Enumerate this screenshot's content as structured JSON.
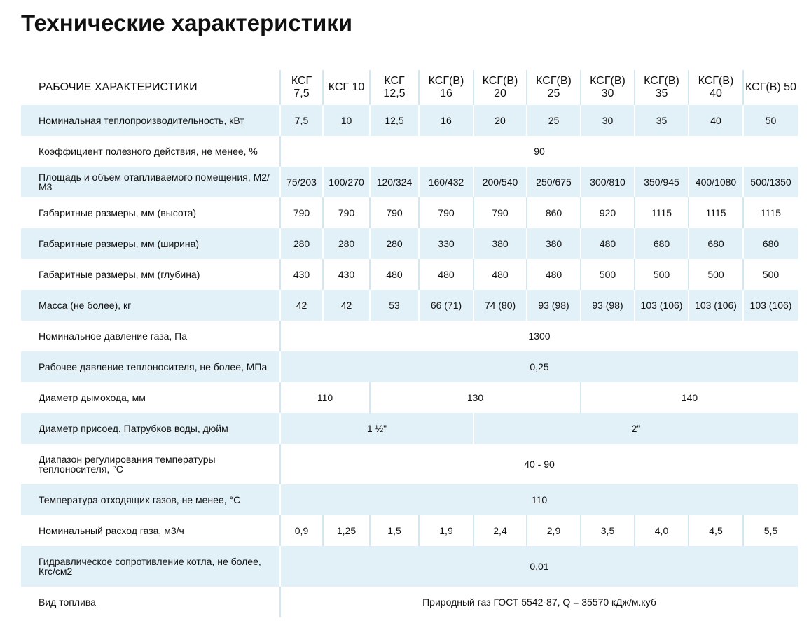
{
  "header": {
    "title": "Технические характеристики"
  },
  "table": {
    "header": [
      "РАБОЧИЕ ХАРАКТЕРИСТИКИ",
      "КСГ 7,5",
      "КСГ 10",
      "КСГ 12,5",
      "КСГ(В) 16",
      "КСГ(В) 20",
      "КСГ(В) 25",
      "КСГ(В) 30",
      "КСГ(В) 35",
      "КСГ(В) 40",
      "КСГ(В) 50"
    ],
    "rows": [
      [
        "Номинальная теплопроизводительность, кВт",
        "7,5",
        "10",
        "12,5",
        "16",
        "20",
        "25",
        "30",
        "35",
        "40",
        "50"
      ],
      [
        "Коэффициент полезного действия, не менее, %",
        "90"
      ],
      [
        "Площадь и объем отапливаемого помещения, М2/М3",
        "75/203",
        "100/270",
        "120/324",
        "160/432",
        "200/540",
        "250/675",
        "300/810",
        "350/945",
        "400/1080",
        "500/1350"
      ],
      [
        "Габаритные размеры, мм (высота)",
        "790",
        "790",
        "790",
        "790",
        "790",
        "860",
        "920",
        "1115",
        "1115",
        "1115"
      ],
      [
        "Габаритные размеры, мм (ширина)",
        "280",
        "280",
        "280",
        "330",
        "380",
        "380",
        "480",
        "680",
        "680",
        "680"
      ],
      [
        "Габаритные размеры, мм (глубина)",
        "430",
        "430",
        "480",
        "480",
        "480",
        "480",
        "500",
        "500",
        "500",
        "500"
      ],
      [
        "Масса (не более), кг",
        "42",
        "42",
        "53",
        "66 (71)",
        "74 (80)",
        "93 (98)",
        "93 (98)",
        "103 (106)",
        "103 (106)",
        "103 (106)"
      ],
      [
        "Номинальное давление газа, Па",
        "1300"
      ],
      [
        "Рабочее давление теплоносителя, не более, МПа",
        "0,25"
      ],
      [
        "Диаметр дымохода, мм",
        "110",
        "130",
        "140"
      ],
      [
        "Диаметр присоед. Патрубков воды, дюйм",
        "1 ½\"",
        "2\""
      ],
      [
        "Диапазон регулирования температуры теплоносителя, °С",
        "40 - 90"
      ],
      [
        "Температура отходящих газов, не менее, °С",
        "110"
      ],
      [
        "Номинальный расход газа, м3/ч",
        "0,9",
        "1,25",
        "1,5",
        "1,9",
        "2,4",
        "2,9",
        "3,5",
        "4,0",
        "4,5",
        "5,5"
      ],
      [
        "Гидравлическое сопротивление котла, не более, Кгс/см2",
        "0,01"
      ],
      [
        "Вид топлива",
        "Природный газ ГОСТ 5542-87, Q = 35570 кДж/м.куб"
      ]
    ]
  }
}
